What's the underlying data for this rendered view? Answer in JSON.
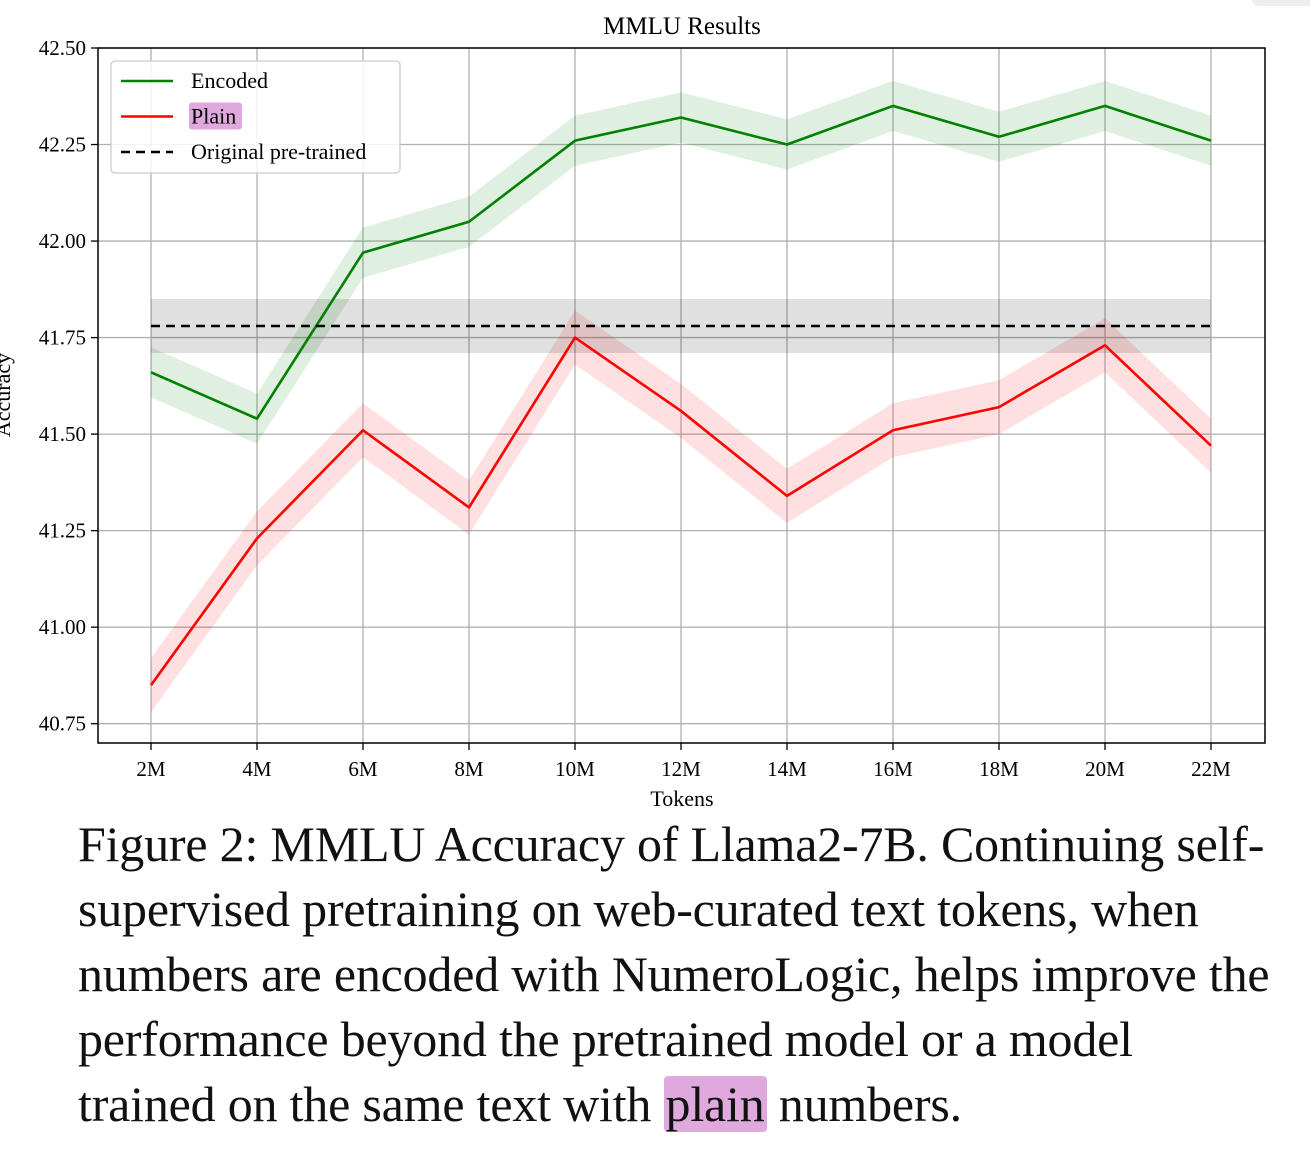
{
  "chart_data": {
    "type": "line",
    "title": "MMLU Results",
    "xlabel": "Tokens",
    "ylabel": "Accuracy",
    "categories": [
      "2M",
      "4M",
      "6M",
      "8M",
      "10M",
      "12M",
      "14M",
      "16M",
      "18M",
      "20M",
      "22M"
    ],
    "ylim": [
      40.7,
      42.5
    ],
    "yticks": [
      "40.75",
      "41.00",
      "41.25",
      "41.50",
      "41.75",
      "42.00",
      "42.25",
      "42.50"
    ],
    "grid": true,
    "legend_position": "top-left",
    "series": [
      {
        "name": "Encoded",
        "color": "#008000",
        "style": "solid",
        "values": [
          41.66,
          41.54,
          41.97,
          42.05,
          42.26,
          42.32,
          42.25,
          42.35,
          42.27,
          42.35,
          42.26
        ],
        "band": 0.065
      },
      {
        "name": "Plain",
        "color": "#ff0000",
        "style": "solid",
        "highlight": true,
        "values": [
          40.85,
          41.23,
          41.51,
          41.31,
          41.75,
          41.56,
          41.34,
          41.51,
          41.57,
          41.73,
          41.47
        ],
        "band": 0.07
      },
      {
        "name": "Original pre-trained",
        "color": "#000000",
        "style": "dashed",
        "values": [
          41.78,
          41.78,
          41.78,
          41.78,
          41.78,
          41.78,
          41.78,
          41.78,
          41.78,
          41.78,
          41.78
        ],
        "band": 0.07
      }
    ]
  },
  "caption": {
    "before_highlight": "Figure 2: MMLU Accuracy of Llama2-7B. Continuing self-supervised pretraining on web-curated text tokens, when numbers are encoded with NumeroLogic, helps improve the performance beyond the pretrained model or a model trained on the same text with ",
    "highlight": "plain",
    "after_highlight": " numbers."
  }
}
